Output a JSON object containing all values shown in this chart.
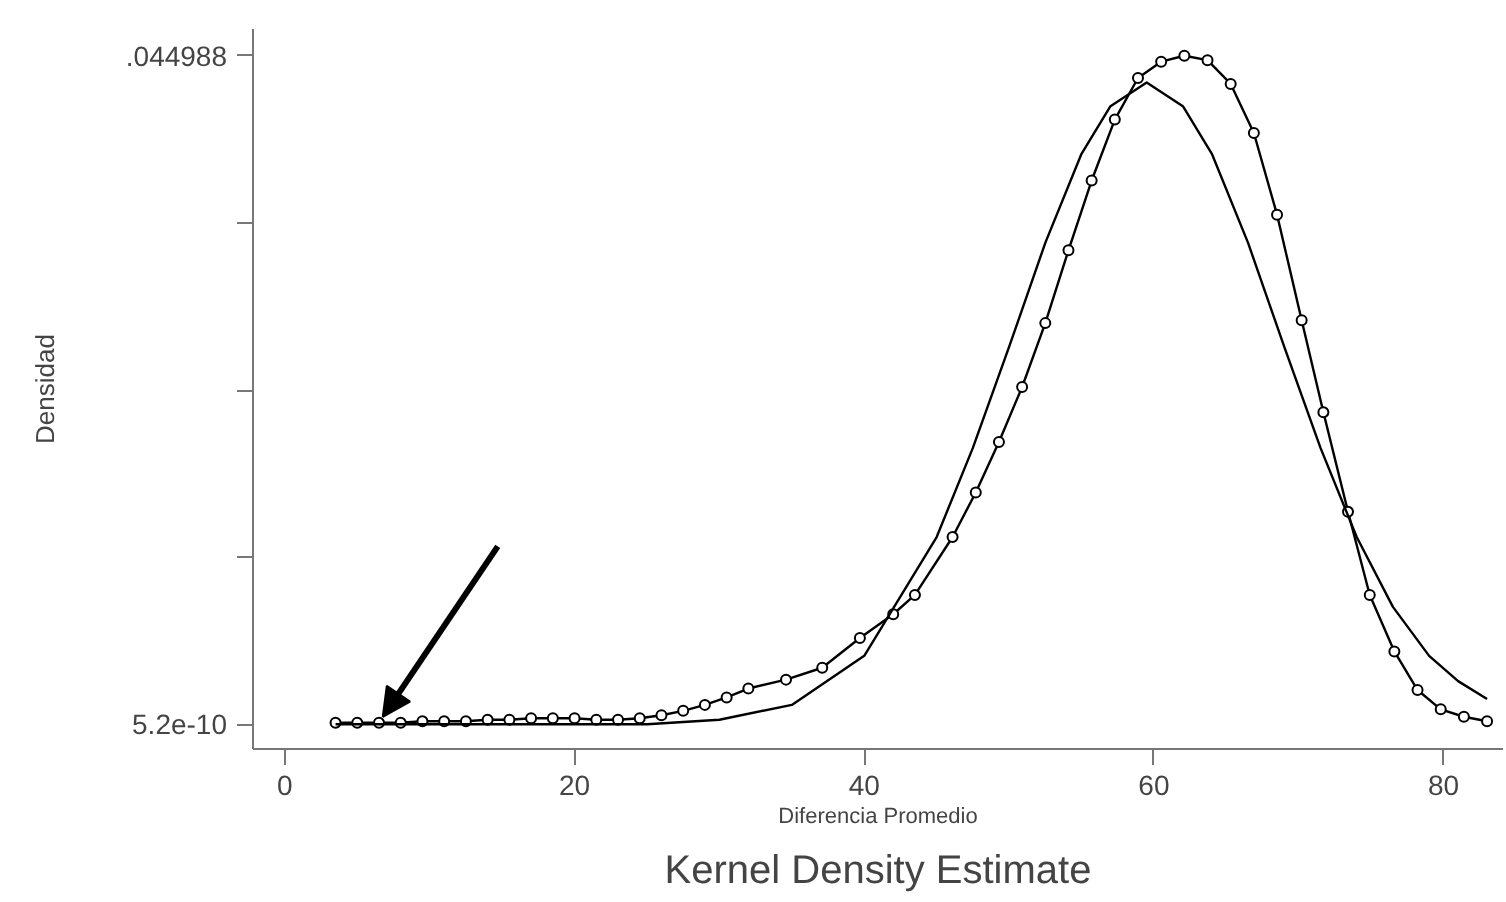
{
  "chart_data": {
    "type": "line",
    "title": "Kernel Density Estimate",
    "xlabel": "Diferencia Promedio",
    "ylabel": "Densidad",
    "xlim": [
      -2.2,
      84.1
    ],
    "xticks": [
      0,
      20,
      40,
      60,
      80
    ],
    "ylim": [
      -0.00167,
      0.0468
    ],
    "yticks": [
      {
        "value": 5.2e-10,
        "label": "5.2e-10"
      },
      {
        "value": 0.011247,
        "label": null
      },
      {
        "value": 0.022494,
        "label": null
      },
      {
        "value": 0.033741,
        "label": null
      },
      {
        "value": 0.044988,
        "label": ".044988"
      }
    ],
    "grid": false,
    "series": [
      {
        "color": "#000000",
        "marker": "circle",
        "x": [
          3.5,
          5,
          6.5,
          8,
          9.5,
          11,
          12.5,
          14,
          15.5,
          17,
          18.5,
          20,
          21.5,
          23,
          24.5,
          26,
          27.5,
          29,
          30.5,
          32,
          34.6,
          37.1,
          39.7,
          42.0,
          43.5,
          46.1,
          47.7,
          49.3,
          50.9,
          52.5,
          54.1,
          55.7,
          57.3,
          58.9,
          60.5,
          62.1,
          63.7,
          65.3,
          66.9,
          68.5,
          70.2,
          71.7,
          73.4,
          74.9,
          76.6,
          78.2,
          79.8,
          81.4,
          83.0
        ],
        "values": [
          0.0001,
          0.0001,
          0.0001,
          0.0001,
          0.0002,
          0.0002,
          0.0002,
          0.0003,
          0.0003,
          0.0004,
          0.0004,
          0.0004,
          0.0003,
          0.0003,
          0.0004,
          0.0006,
          0.0009,
          0.0013,
          0.0018,
          0.0024,
          0.003,
          0.0038,
          0.0058,
          0.0074,
          0.0087,
          0.0126,
          0.0156,
          0.019,
          0.0227,
          0.027,
          0.0319,
          0.0366,
          0.0407,
          0.0435,
          0.0446,
          0.045,
          0.0447,
          0.0431,
          0.0398,
          0.0343,
          0.0272,
          0.021,
          0.0143,
          0.0087,
          0.0049,
          0.0023,
          0.001,
          0.0005,
          0.0002
        ]
      },
      {
        "color": "#000000",
        "marker": "none",
        "x": [
          3.5,
          10,
          20,
          25,
          30,
          35,
          40,
          45,
          47.5,
          50,
          52.5,
          55,
          57,
          59.5,
          62,
          64,
          66.5,
          69,
          71.5,
          74,
          76.5,
          79,
          81,
          83
        ],
        "values": [
          0.0,
          0.0,
          0.0,
          0.0,
          0.0003,
          0.0013,
          0.0046,
          0.0126,
          0.0186,
          0.0254,
          0.0324,
          0.0384,
          0.0416,
          0.0432,
          0.0416,
          0.0384,
          0.0324,
          0.0254,
          0.0186,
          0.0126,
          0.0079,
          0.0046,
          0.0029,
          0.0017
        ]
      }
    ]
  }
}
